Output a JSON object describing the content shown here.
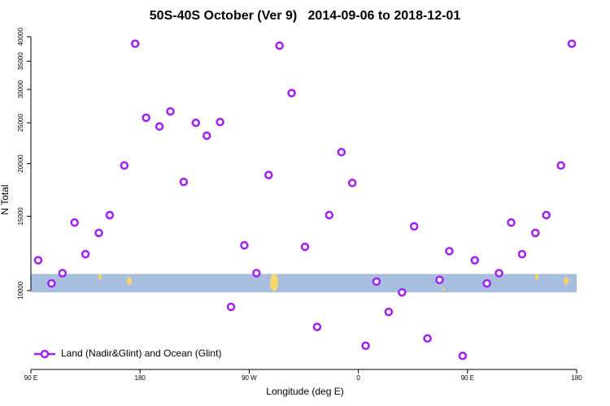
{
  "chart_data": {
    "type": "scatter",
    "title": "50S-40S October (Ver 9)   2014-09-06 to 2018-12-01",
    "x_label": "Longitude (deg E)",
    "y_label": "N Total",
    "log_y": true,
    "legend": "bottomleft",
    "xlim": [
      90,
      540
    ],
    "ylim": [
      6500,
      41300
    ],
    "xticks": [
      {
        "value": 90,
        "label": "90 E"
      },
      {
        "value": 180,
        "label": "180"
      },
      {
        "value": 270,
        "label": "90 W"
      },
      {
        "value": 360,
        "label": "0"
      },
      {
        "value": 450,
        "label": "90 E"
      },
      {
        "value": 540,
        "label": "180"
      }
    ],
    "yticks": [
      10000,
      15000,
      20000,
      25000,
      30000,
      35000,
      40000
    ],
    "band": {
      "ylim": [
        9900,
        10950
      ],
      "color": "#a8bede"
    },
    "series": [
      {
        "name": "Land (Nadir&Glint) and Ocean (Glint)",
        "color": "#a020f0",
        "x": [
          96,
          107,
          116,
          126,
          135,
          146,
          155,
          167,
          176,
          185,
          196,
          205,
          216,
          226,
          235,
          246,
          255,
          266,
          276,
          286,
          295,
          305,
          316,
          326,
          336,
          346,
          355,
          366,
          375,
          385,
          396,
          406,
          417,
          427,
          435,
          446,
          456,
          466,
          476,
          486,
          495,
          506,
          515,
          527,
          536
        ],
        "values": [
          11800,
          10400,
          11000,
          14500,
          12200,
          13700,
          15100,
          19800,
          38500,
          25700,
          24500,
          26600,
          18100,
          25000,
          23300,
          25100,
          9150,
          12800,
          11000,
          18800,
          38100,
          29400,
          12700,
          8200,
          15100,
          21300,
          18000,
          7400,
          10500,
          8900,
          9900,
          14200,
          7700,
          10600,
          12400,
          7000,
          11800,
          10400,
          11000,
          14500,
          12200,
          13700,
          15100,
          19800,
          38500
        ]
      }
    ]
  }
}
